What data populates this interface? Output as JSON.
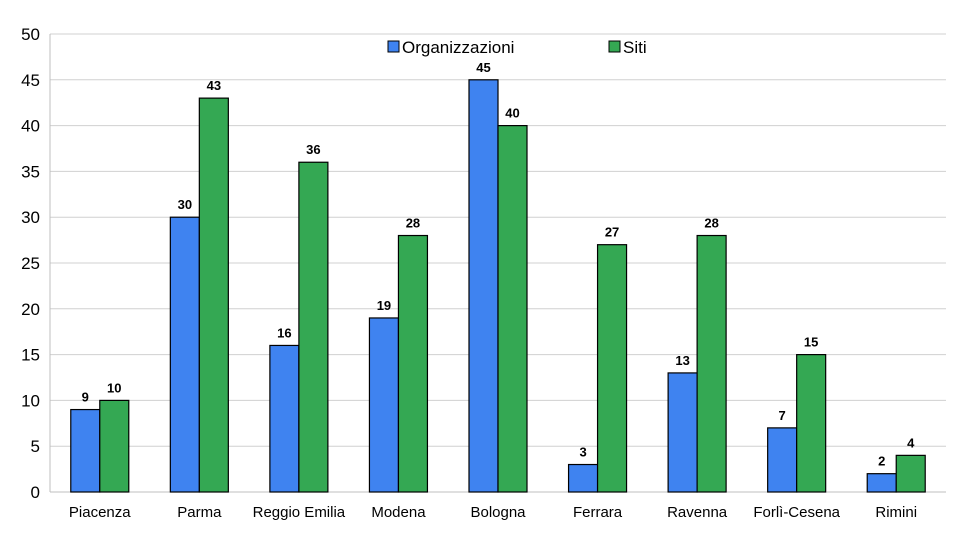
{
  "chart_data": {
    "type": "bar",
    "title": "",
    "xlabel": "",
    "ylabel": "",
    "ylim": [
      0,
      50
    ],
    "yticks": [
      0,
      5,
      10,
      15,
      20,
      25,
      30,
      35,
      40,
      45,
      50
    ],
    "grid": true,
    "legend_position": "top-center",
    "categories": [
      "Piacenza",
      "Parma",
      "Reggio Emilia",
      "Modena",
      "Bologna",
      "Ferrara",
      "Ravenna",
      "Forlì-Cesena",
      "Rimini"
    ],
    "series": [
      {
        "name": "Organizzazioni",
        "color": "#3f83f0",
        "values": [
          9,
          30,
          16,
          19,
          45,
          3,
          13,
          7,
          2
        ]
      },
      {
        "name": "Siti",
        "color": "#34a853",
        "values": [
          10,
          43,
          36,
          28,
          40,
          27,
          28,
          15,
          4
        ]
      }
    ]
  }
}
